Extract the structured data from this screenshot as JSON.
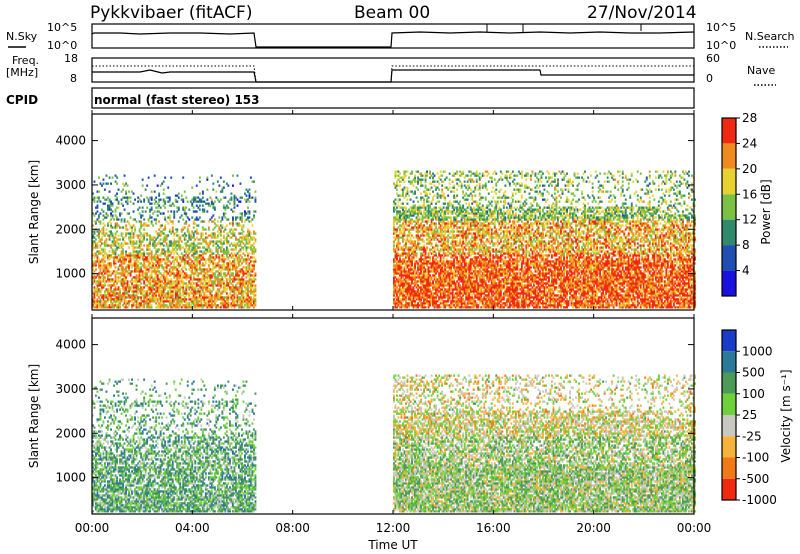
{
  "header": {
    "station": "Pykkvibaer (fitACF)",
    "beam": "Beam 00",
    "date": "27/Nov/2014"
  },
  "side_labels": {
    "nsky": "N.Sky",
    "nsearch": "N.Search",
    "freq": "Freq.",
    "freq_unit": "[MHz]",
    "nave": "Nave",
    "cpid": "CPID",
    "cpid_value": "normal (fast stereo) 153"
  },
  "noise_axis": {
    "top": "10^5",
    "bottom": "10^0"
  },
  "freq_axis": {
    "left_top": "18",
    "left_bottom": "8",
    "right_top": "60",
    "right_bottom": "0"
  },
  "chart_data": [
    {
      "type": "heatmap",
      "panel": "power",
      "ylabel": "Slant Range [km]",
      "yticks": [
        1000,
        2000,
        3000,
        4000
      ],
      "ylim": [
        180,
        4600
      ],
      "colorbar_label": "Power [dB]",
      "colorbar_ticks": [
        "4",
        "8",
        "12",
        "16",
        "20",
        "24",
        "28"
      ],
      "colors": [
        "#1a10e0",
        "#1f4fb0",
        "#2e8a6a",
        "#7ac043",
        "#e8d232",
        "#f08a1f",
        "#f02a12"
      ],
      "data_coverage_hours": [
        [
          0,
          6.5
        ],
        [
          12,
          24
        ]
      ]
    },
    {
      "type": "heatmap",
      "panel": "velocity",
      "ylabel": "Slant Range [km]",
      "yticks": [
        1000,
        2000,
        3000,
        4000
      ],
      "ylim": [
        180,
        4600
      ],
      "colorbar_label": "Velocity [m s⁻¹]",
      "colorbar_ticks": [
        "1000",
        "500",
        "100",
        "25",
        "-25",
        "-100",
        "-500",
        "-1000"
      ],
      "colors": [
        "#1a3cc8",
        "#2a7a98",
        "#4c9a58",
        "#6ed03a",
        "#c8c8c0",
        "#f7b23a",
        "#f07a18",
        "#f02a12"
      ],
      "data_coverage_hours": [
        [
          0,
          6.5
        ],
        [
          12,
          24
        ]
      ]
    }
  ],
  "time_axis": {
    "xlabel": "Time UT",
    "ticks": [
      "00:00",
      "04:00",
      "08:00",
      "12:00",
      "16:00",
      "20:00",
      "00:00"
    ]
  }
}
